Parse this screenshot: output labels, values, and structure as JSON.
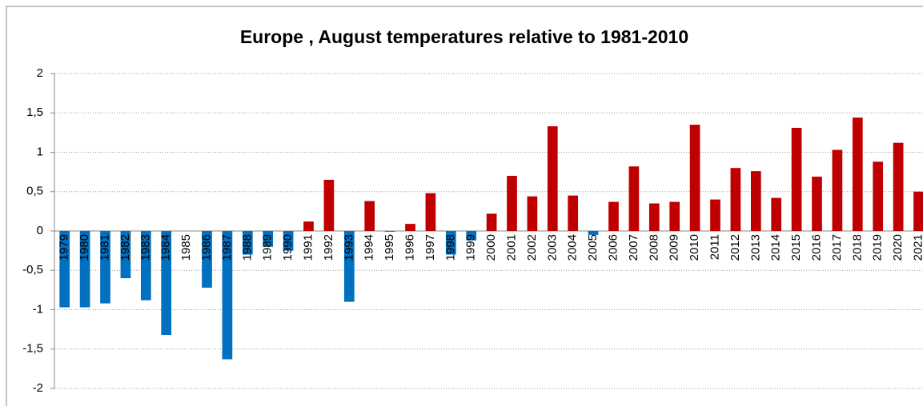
{
  "chart_data": {
    "type": "bar",
    "title": "Europe , August temperatures relative to 1981-2010",
    "categories": [
      "1979",
      "1980",
      "1981",
      "1982",
      "1983",
      "1984",
      "1985",
      "1986",
      "1987",
      "1988",
      "1989",
      "1990",
      "1991",
      "1992",
      "1993",
      "1994",
      "1995",
      "1996",
      "1997",
      "1998",
      "1999",
      "2000",
      "2001",
      "2002",
      "2003",
      "2004",
      "2005",
      "2006",
      "2007",
      "2008",
      "2009",
      "2010",
      "2011",
      "2012",
      "2013",
      "2014",
      "2015",
      "2016",
      "2017",
      "2018",
      "2019",
      "2020",
      "2021"
    ],
    "values": [
      -0.97,
      -0.97,
      -0.92,
      -0.6,
      -0.88,
      -1.32,
      0,
      -0.72,
      -1.63,
      -0.3,
      -0.2,
      -0.25,
      0.12,
      0.65,
      -0.9,
      0.38,
      -0.01,
      0.09,
      0.48,
      -0.3,
      -0.12,
      0.22,
      0.7,
      0.44,
      1.33,
      0.45,
      -0.05,
      0.37,
      0.82,
      0.35,
      0.37,
      1.35,
      0.4,
      0.8,
      0.76,
      0.42,
      1.31,
      0.69,
      1.03,
      1.44,
      0.88,
      1.12,
      0.5
    ],
    "positive_color": "#c00000",
    "negative_color": "#0070c0",
    "ylim": [
      -2,
      2
    ],
    "yticks": [
      -2,
      {
        "value": -1.5,
        "label": "-1,5"
      },
      -1,
      {
        "value": -0.5,
        "label": "-0,5"
      },
      0,
      {
        "value": 0.5,
        "label": "0,5"
      },
      1,
      {
        "value": 1.5,
        "label": "1,5"
      },
      2
    ],
    "grid": true
  }
}
